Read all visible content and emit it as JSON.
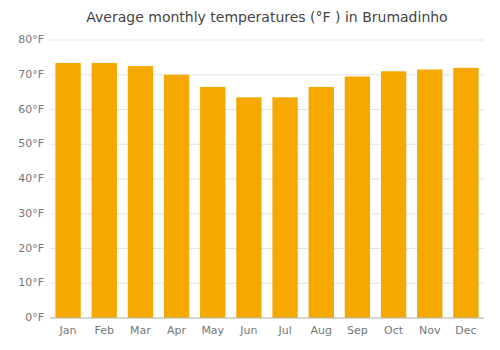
{
  "chart_data": {
    "type": "bar",
    "title": "Average monthly temperatures (°F ) in Brumadinho",
    "categories": [
      "Jan",
      "Feb",
      "Mar",
      "Apr",
      "May",
      "Jun",
      "Jul",
      "Aug",
      "Sep",
      "Oct",
      "Nov",
      "Dec"
    ],
    "values": [
      73.4,
      73.4,
      72.5,
      70.0,
      66.5,
      63.5,
      63.5,
      66.5,
      69.5,
      71.0,
      71.5,
      72.0
    ],
    "color": "#F5A800",
    "ylim": [
      0,
      80
    ],
    "yticks": [
      {
        "value": 0,
        "label": "0°F"
      },
      {
        "value": 10,
        "label": "10°F"
      },
      {
        "value": 20,
        "label": "20°F"
      },
      {
        "value": 30,
        "label": "30°F"
      },
      {
        "value": 40,
        "label": "40°F"
      },
      {
        "value": 50,
        "label": "50°F"
      },
      {
        "value": 60,
        "label": "60°F"
      },
      {
        "value": 70,
        "label": "70°F"
      },
      {
        "value": 80,
        "label": "80°F"
      }
    ],
    "grid": true
  }
}
